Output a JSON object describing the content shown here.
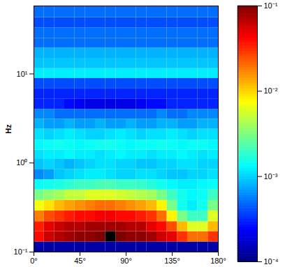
{
  "chart_data": {
    "type": "heatmap",
    "ylabel": "Hz",
    "log": "y",
    "xlim": [
      0,
      180
    ],
    "ylim": [
      0.1,
      58
    ],
    "xticks": [
      {
        "value": 0,
        "label": "0°"
      },
      {
        "value": 45,
        "label": "45°"
      },
      {
        "value": 90,
        "label": "90°"
      },
      {
        "value": 135,
        "label": "135°"
      },
      {
        "value": 180,
        "label": "180°"
      }
    ],
    "yticks": [
      {
        "value": 0.1,
        "label": "10⁻¹"
      },
      {
        "value": 1,
        "label": "10⁰"
      },
      {
        "value": 10,
        "label": "10¹"
      }
    ],
    "x_edges": [
      0,
      10,
      20,
      30,
      40,
      50,
      60,
      70,
      80,
      90,
      100,
      110,
      120,
      130,
      140,
      150,
      160,
      170,
      180
    ],
    "y_edges": [
      0.1,
      0.13,
      0.17,
      0.22,
      0.29,
      0.38,
      0.5,
      0.65,
      0.85,
      1.1,
      1.4,
      1.8,
      2.4,
      3.1,
      4,
      5.2,
      6.8,
      8.9,
      11.5,
      15,
      19.5,
      25,
      33,
      43,
      58
    ],
    "cells": [
      [
        0.00013,
        0.00013,
        0.00013,
        0.00013,
        0.00013,
        0.00013,
        0.00013,
        0.00013,
        0.00013,
        0.00013,
        0.00013,
        0.00013,
        0.00013,
        0.00013,
        0.00013,
        0.00013,
        0.00013,
        0.00013
      ],
      [
        0.04,
        0.06,
        0.07,
        0.08,
        0.09,
        0.09,
        0.1,
        null,
        0.1,
        0.09,
        0.09,
        0.08,
        0.06,
        0.05,
        0.03,
        0.02,
        0.02,
        0.03
      ],
      [
        0.035,
        0.05,
        0.06,
        0.07,
        0.07,
        0.08,
        0.08,
        0.08,
        0.08,
        0.07,
        0.07,
        0.05,
        0.04,
        0.025,
        0.012,
        0.006,
        0.006,
        0.012
      ],
      [
        0.018,
        0.025,
        0.03,
        0.035,
        0.04,
        0.04,
        0.045,
        0.045,
        0.04,
        0.04,
        0.035,
        0.03,
        0.02,
        0.008,
        0.003,
        0.002,
        0.002,
        0.006
      ],
      [
        0.007,
        0.009,
        0.012,
        0.014,
        0.016,
        0.018,
        0.02,
        0.02,
        0.018,
        0.016,
        0.014,
        0.012,
        0.008,
        0.003,
        0.0015,
        0.0012,
        0.0015,
        0.003
      ],
      [
        0.003,
        0.0035,
        0.004,
        0.005,
        0.005,
        0.006,
        0.006,
        0.006,
        0.0055,
        0.005,
        0.0045,
        0.004,
        0.003,
        0.002,
        0.0015,
        0.0013,
        0.0014,
        0.002
      ],
      [
        0.0014,
        0.0015,
        0.0016,
        0.0018,
        0.002,
        0.002,
        0.0022,
        0.0022,
        0.002,
        0.002,
        0.0019,
        0.0017,
        0.0015,
        0.0013,
        0.0012,
        0.0012,
        0.0013,
        0.0014
      ],
      [
        0.0006,
        0.0007,
        0.0009,
        0.001,
        0.0011,
        0.0012,
        0.0012,
        0.0011,
        0.001,
        0.001,
        0.0011,
        0.0011,
        0.001,
        0.0009,
        0.0009,
        0.001,
        0.001,
        0.0011
      ],
      [
        0.0009,
        0.001,
        0.0009,
        0.0008,
        0.0009,
        0.001,
        0.0011,
        0.0011,
        0.001,
        0.001,
        0.0009,
        0.0009,
        0.001,
        0.001,
        0.0011,
        0.0011,
        0.001,
        0.001
      ],
      [
        0.0011,
        0.0012,
        0.0012,
        0.0013,
        0.0012,
        0.0012,
        0.0011,
        0.0012,
        0.0013,
        0.0012,
        0.0012,
        0.0011,
        0.0012,
        0.0012,
        0.0013,
        0.0012,
        0.0011,
        0.0012
      ],
      [
        0.0013,
        0.0014,
        0.0015,
        0.0014,
        0.0013,
        0.0014,
        0.0015,
        0.0015,
        0.0014,
        0.0013,
        0.0014,
        0.0014,
        0.0015,
        0.0014,
        0.0013,
        0.0014,
        0.0014,
        0.0013
      ],
      [
        0.0011,
        0.001,
        0.0011,
        0.0012,
        0.0011,
        0.001,
        0.001,
        0.0011,
        0.0012,
        0.0011,
        0.001,
        0.0011,
        0.0011,
        0.0012,
        0.0011,
        0.001,
        0.0011,
        0.0011
      ],
      [
        0.0008,
        0.0007,
        0.0007,
        0.0008,
        0.0007,
        0.0007,
        0.0008,
        0.0007,
        0.0007,
        0.0008,
        0.0007,
        0.0007,
        0.0008,
        0.0008,
        0.0007,
        0.0007,
        0.0008,
        0.0008
      ],
      [
        0.0006,
        0.0006,
        0.0005,
        0.0005,
        0.0005,
        0.0005,
        0.0005,
        0.0005,
        0.0005,
        0.0005,
        0.0005,
        0.0005,
        0.0006,
        0.0005,
        0.0005,
        0.0006,
        0.0006,
        0.0006
      ],
      [
        0.0003,
        0.0003,
        0.0003,
        0.00025,
        0.00022,
        0.0002,
        0.0002,
        0.0002,
        0.0002,
        0.0002,
        0.00022,
        0.00025,
        0.00025,
        0.0003,
        0.0003,
        0.0003,
        0.0003,
        0.0003
      ],
      [
        0.0003,
        0.0003,
        0.0003,
        0.0003,
        0.0003,
        0.0003,
        0.0003,
        0.0003,
        0.0003,
        0.0003,
        0.0003,
        0.0003,
        0.0003,
        0.0003,
        0.0003,
        0.0003,
        0.0003,
        0.0003
      ],
      [
        0.0004,
        0.0004,
        0.0004,
        0.0004,
        0.0004,
        0.0004,
        0.0004,
        0.0004,
        0.0004,
        0.0004,
        0.0004,
        0.0004,
        0.0004,
        0.0004,
        0.0004,
        0.0004,
        0.0004,
        0.0004
      ],
      [
        0.0012,
        0.0012,
        0.0012,
        0.0012,
        0.0012,
        0.0012,
        0.0012,
        0.0012,
        0.0012,
        0.0012,
        0.0012,
        0.0012,
        0.0012,
        0.0012,
        0.0012,
        0.0012,
        0.0012,
        0.0012
      ],
      [
        0.0009,
        0.0009,
        0.0009,
        0.0009,
        0.0009,
        0.0009,
        0.0009,
        0.0009,
        0.0009,
        0.0009,
        0.0009,
        0.0009,
        0.0009,
        0.0009,
        0.0009,
        0.0009,
        0.0009,
        0.0009
      ],
      [
        0.0008,
        0.0008,
        0.0008,
        0.0008,
        0.0008,
        0.0008,
        0.0008,
        0.0008,
        0.0008,
        0.0008,
        0.0008,
        0.0008,
        0.0008,
        0.0008,
        0.0008,
        0.0008,
        0.0008,
        0.0008
      ],
      [
        0.0005,
        0.0005,
        0.0005,
        0.0005,
        0.0005,
        0.0005,
        0.0005,
        0.0005,
        0.0005,
        0.0005,
        0.0005,
        0.0005,
        0.0005,
        0.0005,
        0.0005,
        0.0005,
        0.0005,
        0.0005
      ],
      [
        0.0005,
        0.0005,
        0.0005,
        0.0005,
        0.0005,
        0.0005,
        0.0005,
        0.0005,
        0.0005,
        0.0005,
        0.0005,
        0.0005,
        0.0005,
        0.0005,
        0.0005,
        0.0005,
        0.0005,
        0.0005
      ],
      [
        0.0004,
        0.0004,
        0.0004,
        0.0004,
        0.0004,
        0.0004,
        0.0004,
        0.0004,
        0.0004,
        0.0004,
        0.0004,
        0.0004,
        0.0004,
        0.0004,
        0.0004,
        0.0004,
        0.0004,
        0.0004
      ],
      [
        0.0005,
        0.0005,
        0.0005,
        0.0005,
        0.0005,
        0.0005,
        0.0005,
        0.0005,
        0.0005,
        0.0005,
        0.0005,
        0.0005,
        0.0005,
        0.0005,
        0.0005,
        0.0005,
        0.0005,
        0.0005
      ]
    ],
    "color_range": [
      0.0001,
      0.1
    ],
    "color_ticks": [
      {
        "value": 0.0001,
        "label": "10⁻⁴"
      },
      {
        "value": 0.001,
        "label": "10⁻³"
      },
      {
        "value": 0.01,
        "label": "10⁻²"
      },
      {
        "value": 0.1,
        "label": "10⁻¹"
      }
    ]
  }
}
